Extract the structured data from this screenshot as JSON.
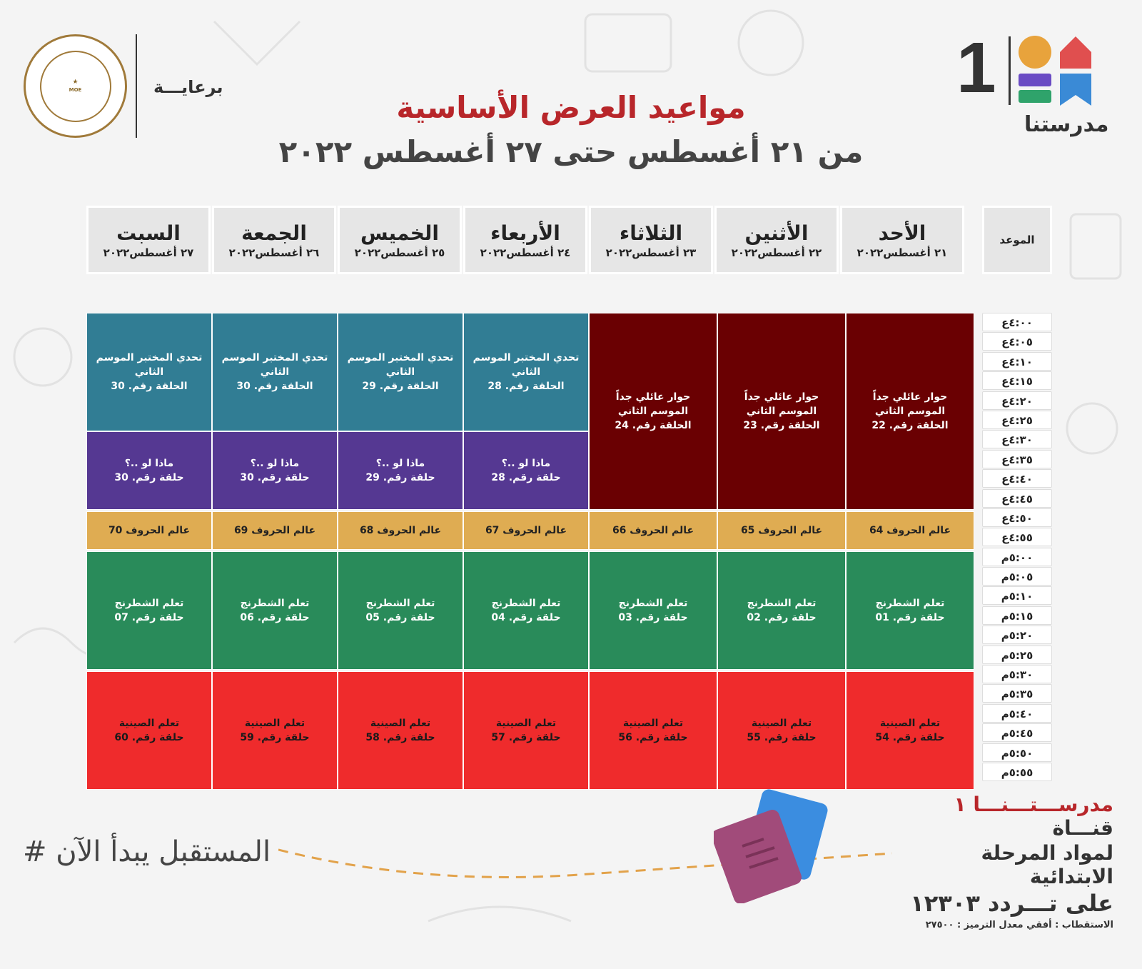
{
  "header": {
    "sponsor_label": "برعايـــة",
    "ministry_seal_text": "MINISTRY OF EDUCATION AND TECHNICAL EDUCATION",
    "channel_number": "1",
    "channel_name": "مدرستنا",
    "title": "مواعيد العرض الأساسية",
    "subtitle": "من ٢١ أغسطس حتى ٢٧ أغسطس ٢٠٢٢"
  },
  "schedule": {
    "time_header": "الموعد",
    "days": [
      {
        "name": "السبت",
        "date": "٢٧ أغسطس٢٠٢٢"
      },
      {
        "name": "الجمعة",
        "date": "٢٦ أغسطس٢٠٢٢"
      },
      {
        "name": "الخميس",
        "date": "٢٥ أغسطس٢٠٢٢"
      },
      {
        "name": "الأربعاء",
        "date": "٢٤ أغسطس٢٠٢٢"
      },
      {
        "name": "الثلاثاء",
        "date": "٢٣ أغسطس٢٠٢٢"
      },
      {
        "name": "الأثنين",
        "date": "٢٢ أغسطس٢٠٢٢"
      },
      {
        "name": "الأحد",
        "date": "٢١ أغسطس٢٠٢٢"
      }
    ],
    "times": [
      "٤:٠٠ع",
      "٤:٠٥ع",
      "٤:١٠ع",
      "٤:١٥ع",
      "٤:٢٠ع",
      "٤:٢٥ع",
      "٤:٣٠ع",
      "٤:٣٥ع",
      "٤:٤٠ع",
      "٤:٤٥ع",
      "٤:٥٠ع",
      "٤:٥٥ع",
      "٥:٠٠م",
      "٥:٠٥م",
      "٥:١٠م",
      "٥:١٥م",
      "٥:٢٠م",
      "٥:٢٥م",
      "٥:٣٠م",
      "٥:٣٥م",
      "٥:٤٠م",
      "٥:٤٥م",
      "٥:٥٠م",
      "٥:٥٥م"
    ],
    "lab_challenge": [
      {
        "title": "تحدي المختبر الموسم الثاني",
        "episode": "الحلقة رقم. 30"
      },
      {
        "title": "تحدي المختبر الموسم الثاني",
        "episode": "الحلقة رقم. 30"
      },
      {
        "title": "تحدي المختبر الموسم الثاني",
        "episode": "الحلقة رقم. 29"
      },
      {
        "title": "تحدي المختبر الموسم الثاني",
        "episode": "الحلقة رقم. 28"
      }
    ],
    "what_if": [
      {
        "title": "ماذا لو ..؟",
        "episode": "حلقة رقم. 30"
      },
      {
        "title": "ماذا لو ..؟",
        "episode": "حلقة رقم. 30"
      },
      {
        "title": "ماذا لو ..؟",
        "episode": "حلقة رقم. 29"
      },
      {
        "title": "ماذا لو ..؟",
        "episode": "حلقة رقم. 28"
      }
    ],
    "family_dialogue": [
      {
        "title": "حوار عائلي جداً الموسم الثاني",
        "episode": "الحلقة رقم. 24"
      },
      {
        "title": "حوار عائلي جداً الموسم الثاني",
        "episode": "الحلقة رقم. 23"
      },
      {
        "title": "حوار عائلي جداً الموسم الثاني",
        "episode": "الحلقة رقم. 22"
      }
    ],
    "letters_world": [
      "عالم الحروف 70",
      "عالم الحروف 69",
      "عالم الحروف 68",
      "عالم الحروف 67",
      "عالم الحروف 66",
      "عالم الحروف 65",
      "عالم الحروف 64"
    ],
    "chess": [
      {
        "title": "تعلم الشطرنج",
        "episode": "حلقة رقم. 07"
      },
      {
        "title": "تعلم الشطرنج",
        "episode": "حلقة رقم. 06"
      },
      {
        "title": "تعلم الشطرنج",
        "episode": "حلقة رقم. 05"
      },
      {
        "title": "تعلم الشطرنج",
        "episode": "حلقة رقم. 04"
      },
      {
        "title": "تعلم الشطرنج",
        "episode": "حلقة رقم. 03"
      },
      {
        "title": "تعلم الشطرنج",
        "episode": "حلقة رقم. 02"
      },
      {
        "title": "تعلم الشطرنج",
        "episode": "حلقة رقم. 01"
      }
    ],
    "chinese": [
      {
        "title": "تعلم الصينية",
        "episode": "حلقة رقم. 60"
      },
      {
        "title": "تعلم الصينية",
        "episode": "حلقة رقم. 59"
      },
      {
        "title": "تعلم الصينية",
        "episode": "حلقة رقم. 58"
      },
      {
        "title": "تعلم الصينية",
        "episode": "حلقة رقم. 57"
      },
      {
        "title": "تعلم الصينية",
        "episode": "حلقة رقم. 56"
      },
      {
        "title": "تعلم الصينية",
        "episode": "حلقة رقم. 55"
      },
      {
        "title": "تعلم الصينية",
        "episode": "حلقة رقم. 54"
      }
    ]
  },
  "footer": {
    "hashtag": "# المستقبل يبدأ الآن",
    "channel_prefix": "قنـــاة",
    "channel_brand": "مدرســـتـــنـــا ١",
    "line2": "لمواد المرحلة الابتدائية",
    "line3": "على تـــردد ١٢٣٠٣",
    "line4": "الاستقطاب : أفقي معدل الترميز : ٢٧٥٠٠"
  },
  "colors": {
    "title_red": "#b8262a",
    "teal": "#317d94",
    "purple": "#553892",
    "maroon": "#6a0002",
    "gold": "#dfac52",
    "green": "#298b5a",
    "red": "#ef2b2c"
  }
}
